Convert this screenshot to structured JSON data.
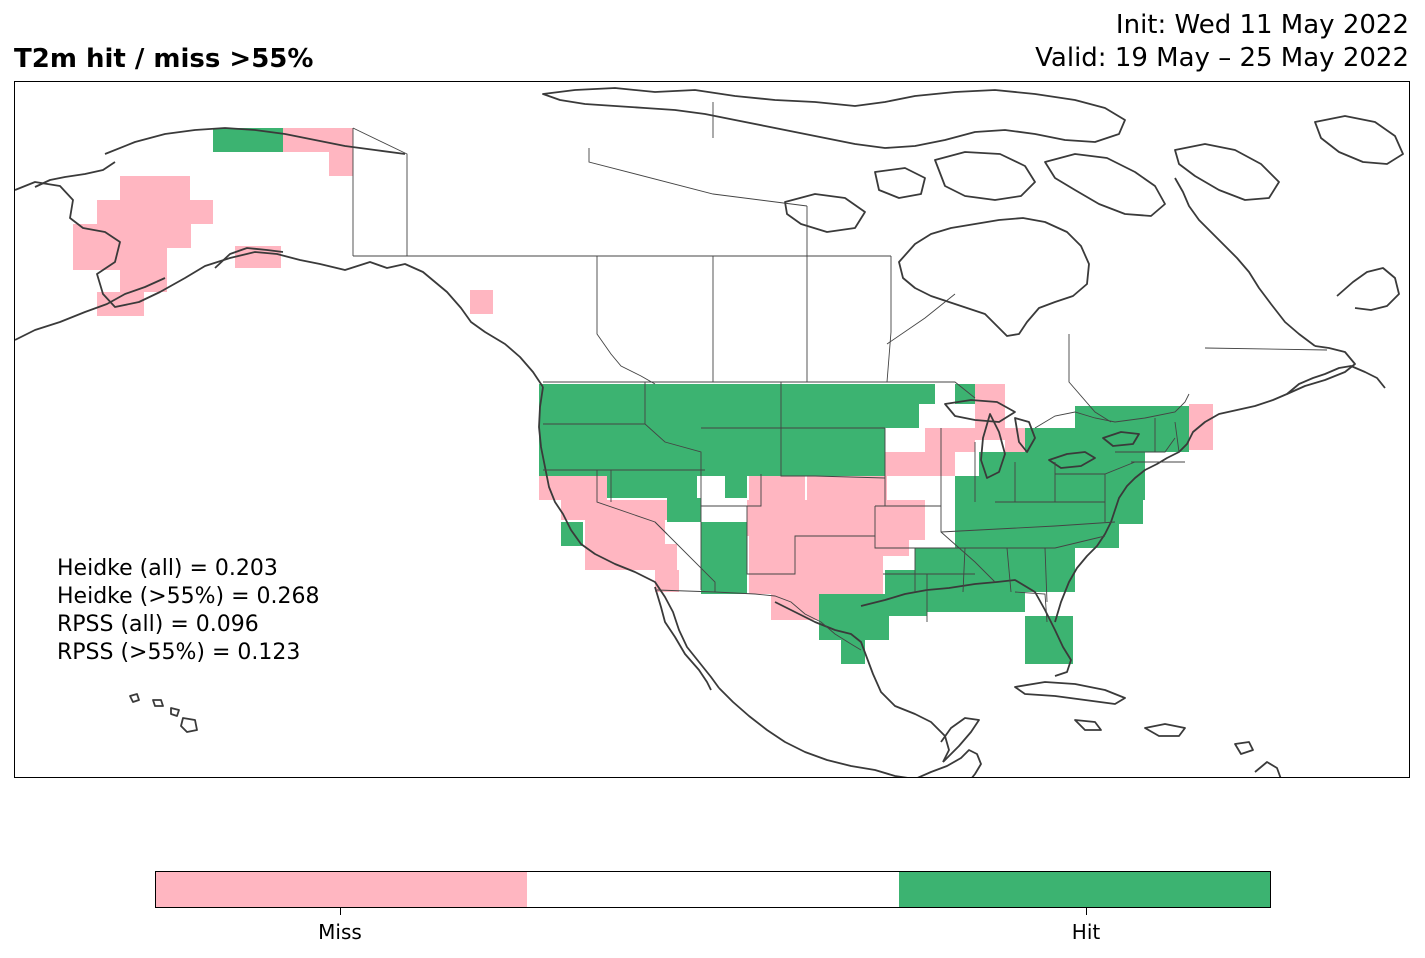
{
  "title": "T2m hit / miss  >55%",
  "init": "Init: Wed 11 May 2022",
  "valid": "Valid: 19 May – 25 May 2022",
  "scores": [
    "Heidke (all) = 0.203",
    "Heidke (>55%) = 0.268",
    "RPSS (all) = 0.096",
    "RPSS (>55%) = 0.123"
  ],
  "colorbar": {
    "colors": [
      "#ffb6c1",
      "#ffffff",
      "#3cb371"
    ],
    "tick_labels": [
      "Miss",
      "Hit"
    ]
  },
  "colors": {
    "miss": "#ffb6c1",
    "hit": "#3cb371",
    "coastline": "#3a3a3a",
    "border": "#444444"
  }
}
